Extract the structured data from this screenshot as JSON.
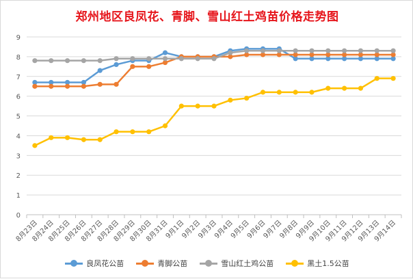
{
  "chart_data": {
    "type": "line",
    "title": "郑州地区良凤花、青脚、雪山红土鸡苗价格走势图",
    "categories": [
      "8月23日",
      "8月24日",
      "8月25日",
      "8月26日",
      "8月27日",
      "8月28日",
      "8月29日",
      "8月30日",
      "8月31日",
      "9月1日",
      "9月2日",
      "9月3日",
      "9月4日",
      "9月5日",
      "9月6日",
      "9月7日",
      "9月8日",
      "9月9日",
      "9月10日",
      "9月11日",
      "9月12日",
      "9月13日",
      "9月14日"
    ],
    "ylim": [
      0,
      9
    ],
    "yticks": [
      "0",
      "1",
      "2",
      "3",
      "4",
      "5",
      "6",
      "7",
      "8",
      "9"
    ],
    "grid": true,
    "legend_position": "bottom",
    "series": [
      {
        "name": "良凤花公苗",
        "color": "#5b9bd5",
        "values": [
          6.7,
          6.7,
          6.7,
          6.7,
          7.3,
          7.6,
          7.8,
          7.8,
          8.2,
          8.0,
          8.0,
          8.0,
          8.3,
          8.4,
          8.4,
          8.4,
          7.9,
          7.9,
          7.9,
          7.9,
          7.9,
          7.9,
          7.9
        ]
      },
      {
        "name": "青脚公苗",
        "color": "#ed7d31",
        "values": [
          6.5,
          6.5,
          6.5,
          6.5,
          6.6,
          6.6,
          7.5,
          7.5,
          7.7,
          8.0,
          8.0,
          8.0,
          8.0,
          8.1,
          8.1,
          8.1,
          8.1,
          8.1,
          8.1,
          8.1,
          8.1,
          8.1,
          8.1
        ]
      },
      {
        "name": "雪山红土鸡公苗",
        "color": "#a5a5a5",
        "values": [
          7.8,
          7.8,
          7.8,
          7.8,
          7.8,
          7.9,
          7.9,
          7.9,
          7.9,
          7.9,
          7.9,
          7.9,
          8.2,
          8.3,
          8.3,
          8.3,
          8.3,
          8.3,
          8.3,
          8.3,
          8.3,
          8.3,
          8.3
        ]
      },
      {
        "name": "黑土1.5公苗",
        "color": "#ffc000",
        "values": [
          3.5,
          3.9,
          3.9,
          3.8,
          3.8,
          4.2,
          4.2,
          4.2,
          4.5,
          5.5,
          5.5,
          5.5,
          5.8,
          5.9,
          6.2,
          6.2,
          6.2,
          6.2,
          6.4,
          6.4,
          6.4,
          6.9,
          6.9
        ]
      }
    ]
  }
}
